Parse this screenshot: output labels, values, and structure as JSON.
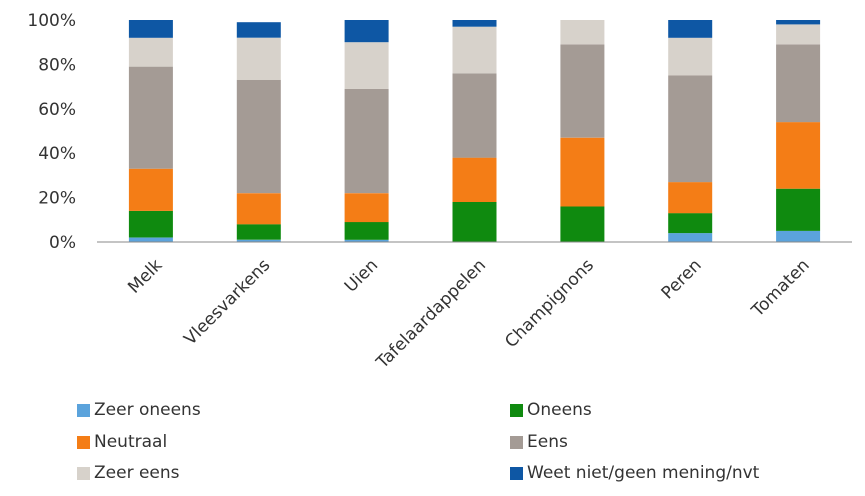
{
  "chart_data": {
    "type": "bar",
    "stacked": true,
    "categories": [
      "Melk",
      "Vleesvarkens",
      "Uien",
      "Tafelaardappelen",
      "Champignons",
      "Peren",
      "Tomaten"
    ],
    "yticks": [
      "0%",
      "20%",
      "40%",
      "60%",
      "80%",
      "100%"
    ],
    "ylim": [
      0,
      100
    ],
    "grid": false,
    "legend_position": "bottom",
    "series": [
      {
        "name": "Zeer oneens",
        "color": "#5ba3dc",
        "values": [
          2,
          1,
          1,
          0,
          0,
          4,
          5
        ]
      },
      {
        "name": "Oneens",
        "color": "#0f8a0f",
        "values": [
          12,
          7,
          8,
          18,
          16,
          9,
          19
        ]
      },
      {
        "name": "Neutraal",
        "color": "#f47d16",
        "values": [
          19,
          14,
          13,
          20,
          31,
          14,
          30
        ]
      },
      {
        "name": "Eens",
        "color": "#a49b95",
        "values": [
          46,
          51,
          47,
          38,
          42,
          48,
          35
        ]
      },
      {
        "name": "Zeer eens",
        "color": "#d7d2cb",
        "values": [
          13,
          19,
          21,
          21,
          11,
          17,
          9
        ]
      },
      {
        "name": "Weet niet/geen mening/nvt",
        "color": "#0e57a4",
        "values": [
          8,
          7,
          10,
          3,
          0,
          8,
          2
        ]
      }
    ]
  }
}
